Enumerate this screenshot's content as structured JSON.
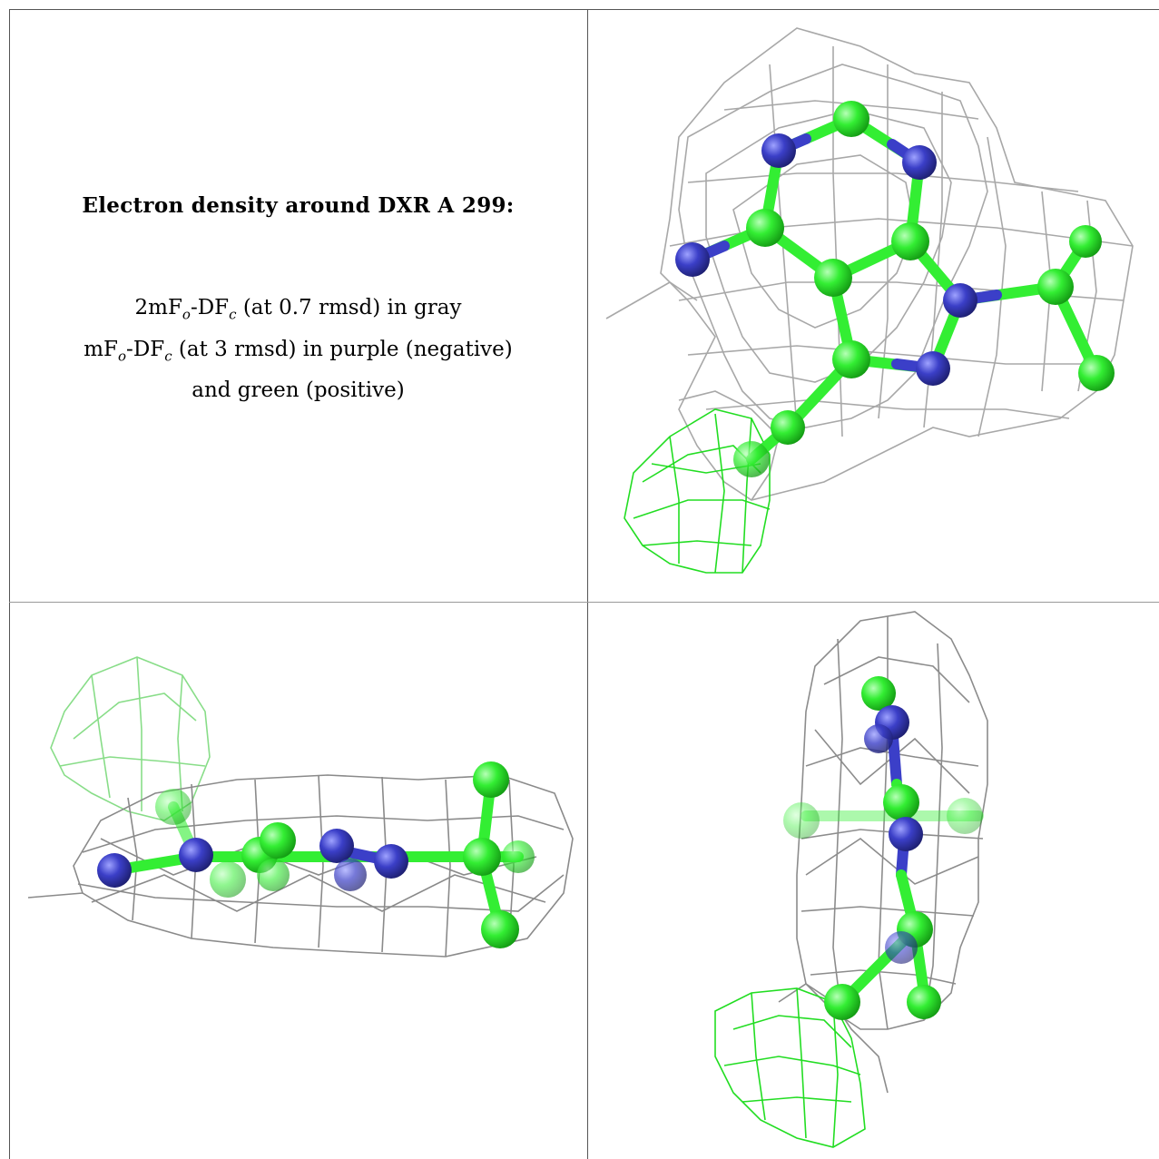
{
  "caption": {
    "title": "Electron density around DXR A 299:",
    "line1": {
      "a": "2mF",
      "o": "o",
      "b": "-DF",
      "c": "c",
      "rest": " (at 0.7 rmsd) in gray"
    },
    "line2": {
      "a": "mF",
      "o": "o",
      "b": "-DF",
      "c": "c",
      "rest": " (at 3 rmsd) in purple (negative)"
    },
    "line3": "and green (positive)"
  },
  "colors": {
    "mesh_gray": "#9a9a9a",
    "mesh_green": "#22dd22",
    "carbon": "#33ee33",
    "nitrogen": "#3b3fc8",
    "border": "#555555"
  },
  "views": [
    "top-view",
    "side-view",
    "end-view"
  ]
}
